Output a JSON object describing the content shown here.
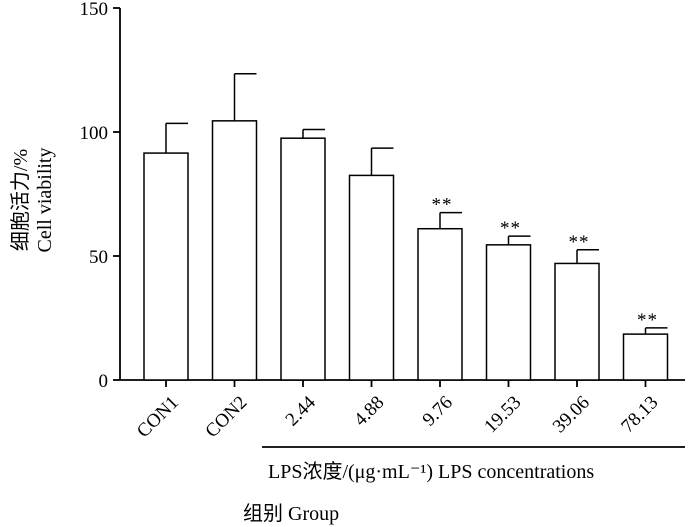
{
  "chart_data": {
    "type": "bar",
    "ylabel_cn": "细胞活力/%",
    "ylabel_en": "Cell viability",
    "ylim": [
      0,
      150
    ],
    "yticks": [
      0,
      50,
      100,
      150
    ],
    "categories": [
      "CON1",
      "CON2",
      "2.44",
      "4.88",
      "9.76",
      "19.53",
      "39.06",
      "78.13"
    ],
    "values": [
      91.5,
      104.5,
      97.5,
      82.5,
      61,
      54.5,
      47,
      18.5
    ],
    "errors": [
      12,
      19,
      3.5,
      11,
      6.5,
      3.5,
      5.5,
      2.5
    ],
    "significance": [
      "",
      "",
      "",
      "",
      "**",
      "**",
      "**",
      "**"
    ],
    "concentration_label": "LPS浓度/(μg·mL⁻¹)  LPS concentrations",
    "xlabel": "组别 Group"
  }
}
